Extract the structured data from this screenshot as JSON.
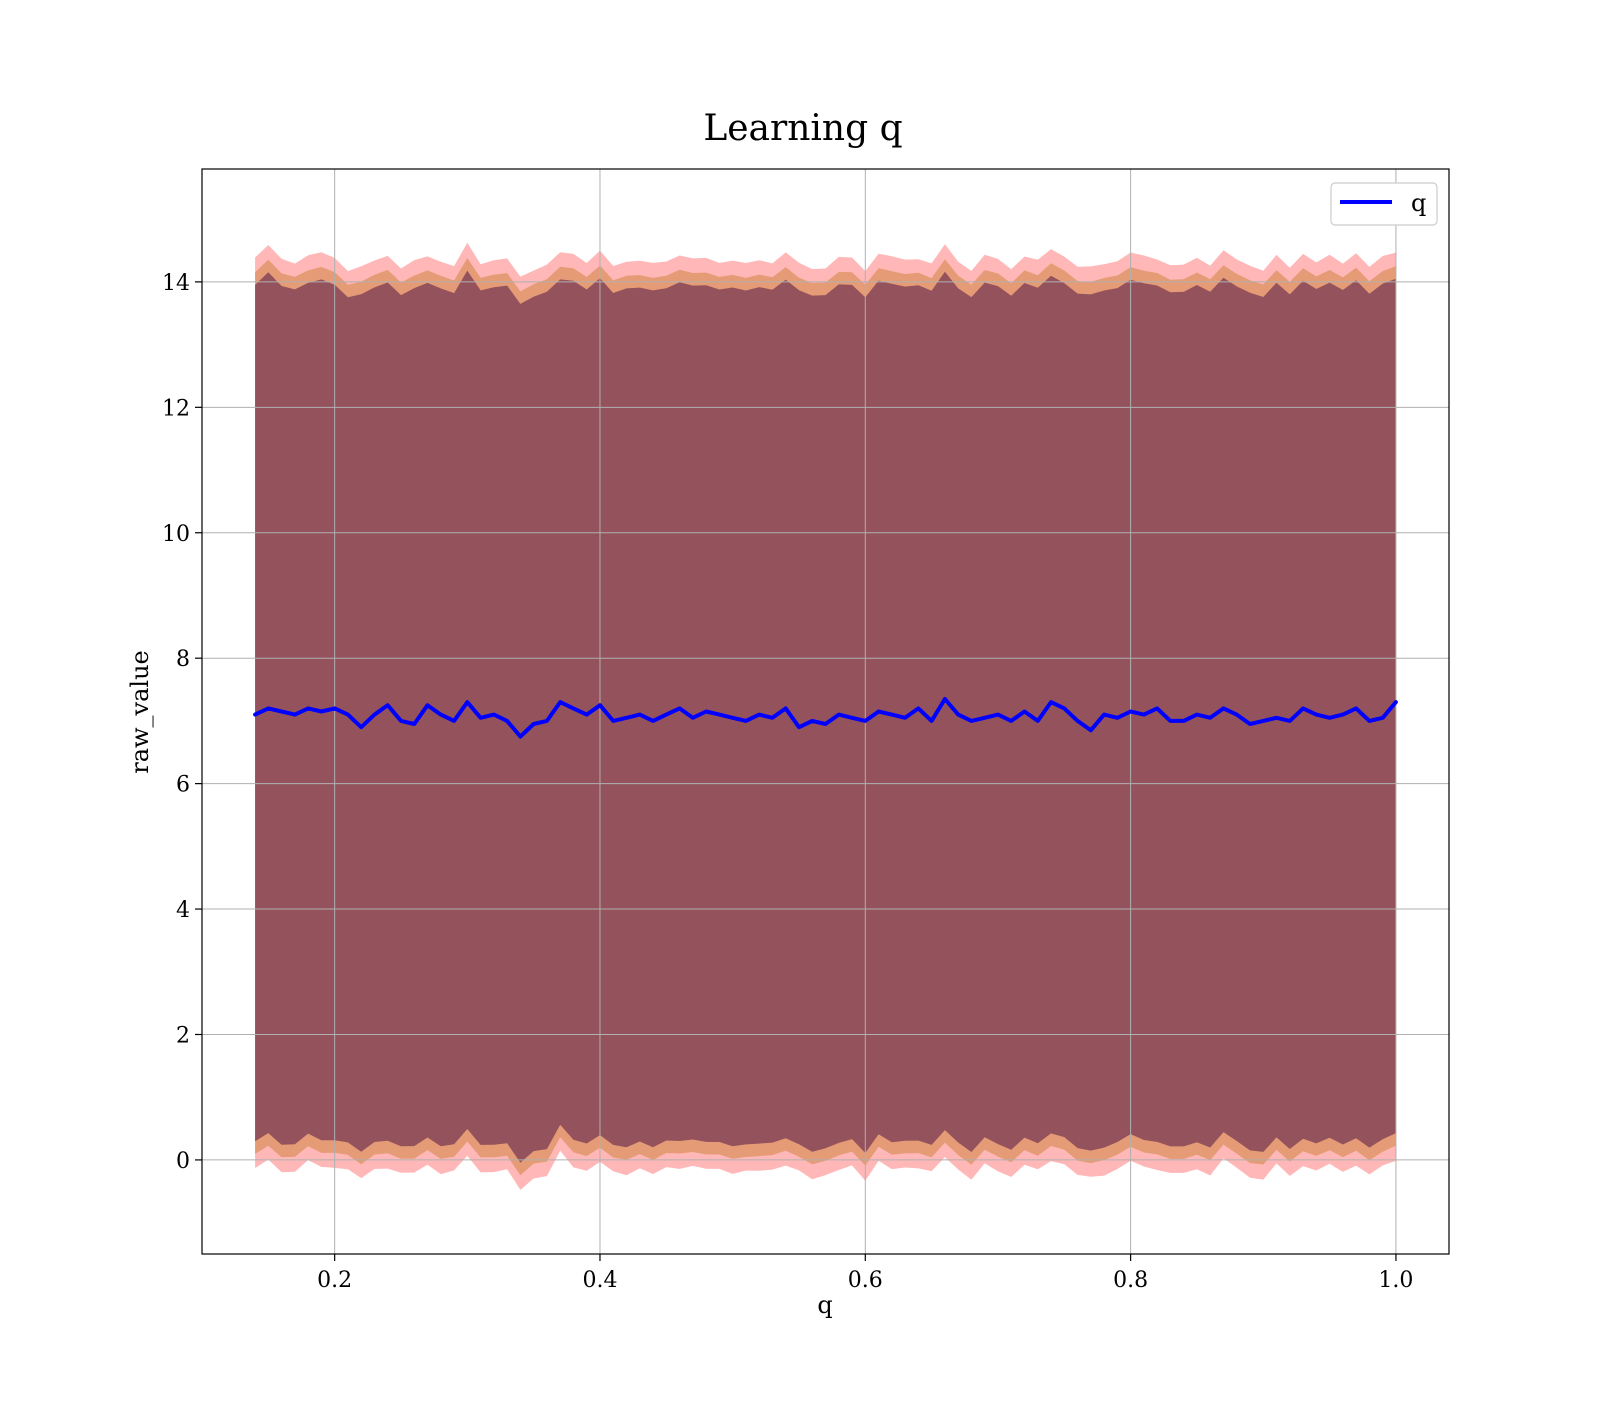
{
  "chart_data": {
    "type": "line",
    "title": "Learning q",
    "xlabel": "q",
    "ylabel": "raw_value",
    "xlim": [
      0.1,
      1.04
    ],
    "ylim": [
      -1.5,
      15.8
    ],
    "x_ticks": [
      0.2,
      0.4,
      0.6,
      0.8,
      1.0
    ],
    "x_tick_labels": [
      "0.2",
      "0.4",
      "0.6",
      "0.8",
      "1.0"
    ],
    "y_ticks": [
      0,
      2,
      4,
      6,
      8,
      10,
      12,
      14
    ],
    "y_tick_labels": [
      "0",
      "2",
      "4",
      "6",
      "8",
      "10",
      "12",
      "14"
    ],
    "grid": true,
    "legend": {
      "position": "top-right",
      "entries": [
        "q"
      ]
    },
    "colors": {
      "line": "#0000ff",
      "band_inner": "#8b4a5a",
      "band_mid": "#d0853f",
      "band_outer": "#ff5f5f",
      "grid": "#b0b0b0"
    },
    "series": [
      {
        "name": "q",
        "x": [
          0.14,
          0.15,
          0.16,
          0.17,
          0.18,
          0.19,
          0.2,
          0.21,
          0.22,
          0.23,
          0.24,
          0.25,
          0.26,
          0.27,
          0.28,
          0.29,
          0.3,
          0.31,
          0.32,
          0.33,
          0.34,
          0.35,
          0.36,
          0.37,
          0.38,
          0.39,
          0.4,
          0.41,
          0.42,
          0.43,
          0.44,
          0.45,
          0.46,
          0.47,
          0.48,
          0.49,
          0.5,
          0.51,
          0.52,
          0.53,
          0.54,
          0.55,
          0.56,
          0.57,
          0.58,
          0.59,
          0.6,
          0.61,
          0.62,
          0.63,
          0.64,
          0.65,
          0.66,
          0.67,
          0.68,
          0.69,
          0.7,
          0.71,
          0.72,
          0.73,
          0.74,
          0.75,
          0.76,
          0.77,
          0.78,
          0.79,
          0.8,
          0.81,
          0.82,
          0.83,
          0.84,
          0.85,
          0.86,
          0.87,
          0.88,
          0.89,
          0.9,
          0.91,
          0.92,
          0.93,
          0.94,
          0.95,
          0.96,
          0.97,
          0.98,
          0.99,
          1.0
        ],
        "y": [
          7.1,
          7.2,
          7.15,
          7.1,
          7.2,
          7.15,
          7.2,
          7.1,
          6.9,
          7.1,
          7.25,
          7.0,
          6.95,
          7.25,
          7.1,
          7.0,
          7.3,
          7.05,
          7.1,
          7.0,
          6.75,
          6.95,
          7.0,
          7.3,
          7.2,
          7.1,
          7.25,
          7.0,
          7.05,
          7.1,
          7.0,
          7.1,
          7.2,
          7.05,
          7.15,
          7.1,
          7.05,
          7.0,
          7.1,
          7.05,
          7.2,
          6.9,
          7.0,
          6.95,
          7.1,
          7.05,
          7.0,
          7.15,
          7.1,
          7.05,
          7.2,
          7.0,
          7.35,
          7.1,
          7.0,
          7.05,
          7.1,
          7.0,
          7.15,
          7.0,
          7.3,
          7.2,
          7.0,
          6.85,
          7.1,
          7.05,
          7.15,
          7.1,
          7.2,
          7.0,
          7.0,
          7.1,
          7.05,
          7.2,
          7.1,
          6.95,
          7.0,
          7.05,
          7.0,
          7.2,
          7.1,
          7.05,
          7.1,
          7.2,
          7.0,
          7.05,
          7.3
        ],
        "band_upper": [
          14.3,
          14.5,
          14.3,
          14.35,
          14.3,
          14.4,
          14.35,
          14.2,
          14.1,
          14.3,
          14.4,
          14.2,
          14.2,
          14.4,
          14.3,
          14.2,
          14.5,
          14.3,
          14.3,
          14.3,
          14.0,
          14.2,
          14.2,
          14.4,
          14.4,
          14.3,
          14.4,
          14.2,
          14.3,
          14.3,
          14.2,
          14.3,
          14.4,
          14.3,
          14.3,
          14.3,
          14.3,
          14.2,
          14.3,
          14.3,
          14.4,
          14.2,
          14.2,
          14.2,
          14.3,
          14.3,
          14.2,
          14.4,
          14.3,
          14.3,
          14.4,
          14.2,
          14.5,
          14.3,
          14.2,
          14.3,
          14.3,
          14.2,
          14.4,
          14.2,
          14.5,
          14.4,
          14.2,
          14.1,
          14.3,
          14.3,
          14.4,
          14.3,
          14.4,
          14.2,
          14.2,
          14.3,
          14.3,
          14.4,
          14.3,
          14.2,
          14.2,
          14.3,
          14.2,
          14.4,
          14.3,
          14.3,
          14.3,
          14.4,
          14.2,
          14.3,
          14.5
        ],
        "band_lower": [
          -0.1,
          0.0,
          -0.1,
          -0.1,
          0.0,
          -0.1,
          0.0,
          -0.1,
          -0.3,
          -0.1,
          0.0,
          -0.2,
          -0.2,
          0.0,
          -0.1,
          -0.2,
          0.1,
          -0.1,
          -0.1,
          -0.2,
          -0.4,
          -0.2,
          -0.2,
          0.1,
          0.0,
          -0.1,
          0.0,
          -0.2,
          -0.1,
          -0.1,
          -0.2,
          -0.1,
          0.0,
          -0.1,
          -0.1,
          -0.1,
          -0.1,
          -0.2,
          -0.1,
          -0.1,
          0.0,
          -0.2,
          -0.2,
          -0.2,
          -0.1,
          -0.1,
          -0.2,
          0.0,
          -0.1,
          -0.1,
          0.0,
          -0.2,
          0.1,
          -0.1,
          -0.2,
          -0.1,
          -0.1,
          -0.2,
          0.0,
          -0.2,
          0.1,
          0.0,
          -0.2,
          -0.3,
          -0.1,
          -0.1,
          0.0,
          -0.1,
          0.0,
          -0.2,
          -0.2,
          -0.1,
          -0.1,
          0.0,
          -0.1,
          -0.2,
          -0.2,
          -0.1,
          -0.2,
          0.0,
          -0.1,
          -0.1,
          -0.1,
          0.0,
          -0.2,
          -0.1,
          0.1
        ]
      }
    ]
  }
}
